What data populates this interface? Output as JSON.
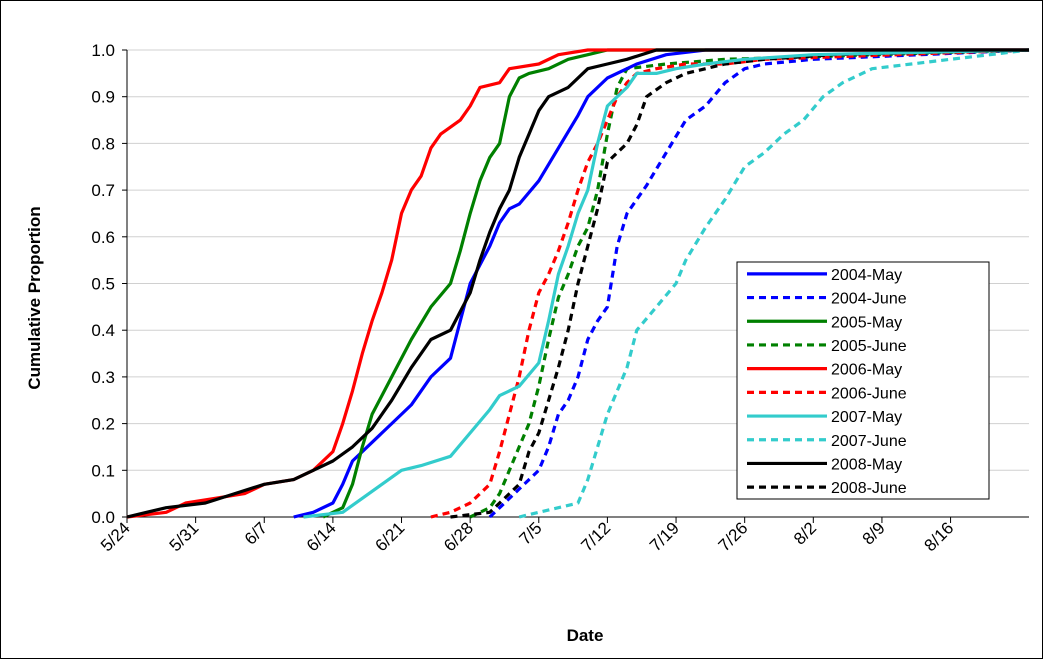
{
  "chart_data": {
    "type": "line",
    "xlabel": "Date",
    "ylabel": "Cumulative Proportion",
    "x_tick_labels": [
      "5/24",
      "5/31",
      "6/7",
      "6/14",
      "6/21",
      "6/28",
      "7/5",
      "7/12",
      "7/19",
      "7/26",
      "8/2",
      "8/9",
      "8/16"
    ],
    "x_range": [
      "5/24",
      "8/24"
    ],
    "ylim": [
      0,
      1
    ],
    "y_tick_labels": [
      "0.0",
      "0.1",
      "0.2",
      "0.3",
      "0.4",
      "0.5",
      "0.6",
      "0.7",
      "0.8",
      "0.9",
      "1.0"
    ],
    "grid": "horizontal",
    "legend_position": "right",
    "series": [
      {
        "name": "2004-May",
        "color": "#0000ff",
        "style": "solid",
        "points": [
          [
            "6/10",
            0
          ],
          [
            "6/12",
            0.01
          ],
          [
            "6/14",
            0.03
          ],
          [
            "6/15",
            0.07
          ],
          [
            "6/16",
            0.12
          ],
          [
            "6/18",
            0.16
          ],
          [
            "6/20",
            0.2
          ],
          [
            "6/22",
            0.24
          ],
          [
            "6/24",
            0.3
          ],
          [
            "6/26",
            0.34
          ],
          [
            "6/27",
            0.42
          ],
          [
            "6/28",
            0.5
          ],
          [
            "6/30",
            0.58
          ],
          [
            "7/1",
            0.63
          ],
          [
            "7/2",
            0.66
          ],
          [
            "7/3",
            0.67
          ],
          [
            "7/5",
            0.72
          ],
          [
            "7/7",
            0.79
          ],
          [
            "7/9",
            0.86
          ],
          [
            "7/10",
            0.9
          ],
          [
            "7/12",
            0.94
          ],
          [
            "7/15",
            0.97
          ],
          [
            "7/18",
            0.99
          ],
          [
            "7/22",
            1.0
          ],
          [
            "8/24",
            1.0
          ]
        ]
      },
      {
        "name": "2004-June",
        "color": "#0000ff",
        "style": "dashed",
        "points": [
          [
            "6/30",
            0
          ],
          [
            "7/1",
            0.02
          ],
          [
            "7/3",
            0.06
          ],
          [
            "7/5",
            0.1
          ],
          [
            "7/6",
            0.15
          ],
          [
            "7/7",
            0.22
          ],
          [
            "7/8",
            0.25
          ],
          [
            "7/9",
            0.3
          ],
          [
            "7/10",
            0.38
          ],
          [
            "7/11",
            0.42
          ],
          [
            "7/12",
            0.45
          ],
          [
            "7/13",
            0.58
          ],
          [
            "7/14",
            0.65
          ],
          [
            "7/16",
            0.71
          ],
          [
            "7/18",
            0.78
          ],
          [
            "7/20",
            0.85
          ],
          [
            "7/22",
            0.88
          ],
          [
            "7/24",
            0.93
          ],
          [
            "7/26",
            0.96
          ],
          [
            "7/28",
            0.97
          ],
          [
            "8/2",
            0.98
          ],
          [
            "8/24",
            1.0
          ]
        ]
      },
      {
        "name": "2005-May",
        "color": "#008000",
        "style": "solid",
        "points": [
          [
            "6/13",
            0
          ],
          [
            "6/15",
            0.02
          ],
          [
            "6/16",
            0.07
          ],
          [
            "6/17",
            0.15
          ],
          [
            "6/18",
            0.22
          ],
          [
            "6/20",
            0.3
          ],
          [
            "6/22",
            0.38
          ],
          [
            "6/24",
            0.45
          ],
          [
            "6/26",
            0.5
          ],
          [
            "6/27",
            0.57
          ],
          [
            "6/28",
            0.65
          ],
          [
            "6/29",
            0.72
          ],
          [
            "6/30",
            0.77
          ],
          [
            "7/1",
            0.8
          ],
          [
            "7/2",
            0.9
          ],
          [
            "7/3",
            0.94
          ],
          [
            "7/4",
            0.95
          ],
          [
            "7/6",
            0.96
          ],
          [
            "7/8",
            0.98
          ],
          [
            "7/10",
            0.99
          ],
          [
            "7/12",
            1.0
          ],
          [
            "8/24",
            1.0
          ]
        ]
      },
      {
        "name": "2005-June",
        "color": "#008000",
        "style": "dashed",
        "points": [
          [
            "6/28",
            0
          ],
          [
            "6/30",
            0.02
          ],
          [
            "7/1",
            0.05
          ],
          [
            "7/2",
            0.1
          ],
          [
            "7/3",
            0.15
          ],
          [
            "7/4",
            0.2
          ],
          [
            "7/5",
            0.28
          ],
          [
            "7/6",
            0.38
          ],
          [
            "7/7",
            0.47
          ],
          [
            "7/8",
            0.52
          ],
          [
            "7/9",
            0.58
          ],
          [
            "7/10",
            0.62
          ],
          [
            "7/11",
            0.7
          ],
          [
            "7/12",
            0.82
          ],
          [
            "7/13",
            0.92
          ],
          [
            "7/14",
            0.96
          ],
          [
            "7/18",
            0.97
          ],
          [
            "7/24",
            0.98
          ],
          [
            "8/24",
            1.0
          ]
        ]
      },
      {
        "name": "2006-May",
        "color": "#ff0000",
        "style": "solid",
        "points": [
          [
            "5/24",
            0
          ],
          [
            "5/28",
            0.01
          ],
          [
            "5/30",
            0.03
          ],
          [
            "6/2",
            0.04
          ],
          [
            "6/5",
            0.05
          ],
          [
            "6/7",
            0.07
          ],
          [
            "6/10",
            0.08
          ],
          [
            "6/12",
            0.1
          ],
          [
            "6/14",
            0.14
          ],
          [
            "6/15",
            0.2
          ],
          [
            "6/16",
            0.27
          ],
          [
            "6/17",
            0.35
          ],
          [
            "6/18",
            0.42
          ],
          [
            "6/19",
            0.48
          ],
          [
            "6/20",
            0.55
          ],
          [
            "6/21",
            0.65
          ],
          [
            "6/22",
            0.7
          ],
          [
            "6/23",
            0.73
          ],
          [
            "6/24",
            0.79
          ],
          [
            "6/25",
            0.82
          ],
          [
            "6/27",
            0.85
          ],
          [
            "6/28",
            0.88
          ],
          [
            "6/29",
            0.92
          ],
          [
            "7/1",
            0.93
          ],
          [
            "7/2",
            0.96
          ],
          [
            "7/5",
            0.97
          ],
          [
            "7/7",
            0.99
          ],
          [
            "7/10",
            1.0
          ],
          [
            "8/24",
            1.0
          ]
        ]
      },
      {
        "name": "2006-June",
        "color": "#ff0000",
        "style": "dashed",
        "points": [
          [
            "6/24",
            0
          ],
          [
            "6/26",
            0.01
          ],
          [
            "6/28",
            0.03
          ],
          [
            "6/30",
            0.07
          ],
          [
            "7/1",
            0.14
          ],
          [
            "7/2",
            0.22
          ],
          [
            "7/3",
            0.3
          ],
          [
            "7/4",
            0.4
          ],
          [
            "7/5",
            0.48
          ],
          [
            "7/6",
            0.52
          ],
          [
            "7/7",
            0.57
          ],
          [
            "7/8",
            0.63
          ],
          [
            "7/9",
            0.7
          ],
          [
            "7/10",
            0.76
          ],
          [
            "7/11",
            0.8
          ],
          [
            "7/12",
            0.85
          ],
          [
            "7/13",
            0.9
          ],
          [
            "7/14",
            0.93
          ],
          [
            "7/15",
            0.95
          ],
          [
            "7/17",
            0.96
          ],
          [
            "7/20",
            0.97
          ],
          [
            "7/24",
            0.97
          ],
          [
            "7/28",
            0.98
          ],
          [
            "8/24",
            1.0
          ]
        ]
      },
      {
        "name": "2007-May",
        "color": "#33cccc",
        "style": "solid",
        "points": [
          [
            "6/11",
            0
          ],
          [
            "6/15",
            0.01
          ],
          [
            "6/17",
            0.04
          ],
          [
            "6/19",
            0.07
          ],
          [
            "6/21",
            0.1
          ],
          [
            "6/23",
            0.11
          ],
          [
            "6/26",
            0.13
          ],
          [
            "6/28",
            0.18
          ],
          [
            "6/30",
            0.23
          ],
          [
            "7/1",
            0.26
          ],
          [
            "7/3",
            0.28
          ],
          [
            "7/5",
            0.33
          ],
          [
            "7/6",
            0.42
          ],
          [
            "7/7",
            0.52
          ],
          [
            "7/8",
            0.58
          ],
          [
            "7/9",
            0.65
          ],
          [
            "7/10",
            0.7
          ],
          [
            "7/11",
            0.8
          ],
          [
            "7/12",
            0.88
          ],
          [
            "7/13",
            0.9
          ],
          [
            "7/14",
            0.92
          ],
          [
            "7/15",
            0.95
          ],
          [
            "7/17",
            0.95
          ],
          [
            "7/19",
            0.96
          ],
          [
            "7/22",
            0.97
          ],
          [
            "7/26",
            0.98
          ],
          [
            "8/2",
            0.99
          ],
          [
            "8/24",
            1.0
          ]
        ]
      },
      {
        "name": "2007-June",
        "color": "#33cccc",
        "style": "dashed",
        "points": [
          [
            "7/3",
            0
          ],
          [
            "7/5",
            0.01
          ],
          [
            "7/7",
            0.02
          ],
          [
            "7/9",
            0.03
          ],
          [
            "7/10",
            0.08
          ],
          [
            "7/11",
            0.15
          ],
          [
            "7/12",
            0.22
          ],
          [
            "7/13",
            0.27
          ],
          [
            "7/14",
            0.32
          ],
          [
            "7/15",
            0.4
          ],
          [
            "7/17",
            0.45
          ],
          [
            "7/19",
            0.5
          ],
          [
            "7/20",
            0.55
          ],
          [
            "7/22",
            0.62
          ],
          [
            "7/24",
            0.68
          ],
          [
            "7/26",
            0.75
          ],
          [
            "7/28",
            0.78
          ],
          [
            "7/30",
            0.82
          ],
          [
            "8/1",
            0.85
          ],
          [
            "8/3",
            0.9
          ],
          [
            "8/5",
            0.93
          ],
          [
            "8/8",
            0.96
          ],
          [
            "8/12",
            0.97
          ],
          [
            "8/16",
            0.98
          ],
          [
            "8/20",
            0.99
          ],
          [
            "8/24",
            1.0
          ]
        ]
      },
      {
        "name": "2008-May",
        "color": "#000000",
        "style": "solid",
        "points": [
          [
            "5/24",
            0
          ],
          [
            "5/26",
            0.01
          ],
          [
            "5/28",
            0.02
          ],
          [
            "6/1",
            0.03
          ],
          [
            "6/4",
            0.05
          ],
          [
            "6/7",
            0.07
          ],
          [
            "6/10",
            0.08
          ],
          [
            "6/12",
            0.1
          ],
          [
            "6/14",
            0.12
          ],
          [
            "6/16",
            0.15
          ],
          [
            "6/18",
            0.19
          ],
          [
            "6/20",
            0.25
          ],
          [
            "6/22",
            0.32
          ],
          [
            "6/24",
            0.38
          ],
          [
            "6/26",
            0.4
          ],
          [
            "6/27",
            0.44
          ],
          [
            "6/28",
            0.48
          ],
          [
            "6/29",
            0.55
          ],
          [
            "6/30",
            0.61
          ],
          [
            "7/1",
            0.66
          ],
          [
            "7/2",
            0.7
          ],
          [
            "7/3",
            0.77
          ],
          [
            "7/4",
            0.82
          ],
          [
            "7/5",
            0.87
          ],
          [
            "7/6",
            0.9
          ],
          [
            "7/8",
            0.92
          ],
          [
            "7/10",
            0.96
          ],
          [
            "7/12",
            0.97
          ],
          [
            "7/14",
            0.98
          ],
          [
            "7/17",
            1.0
          ],
          [
            "8/24",
            1.0
          ]
        ]
      },
      {
        "name": "2008-June",
        "color": "#000000",
        "style": "dashed",
        "points": [
          [
            "6/26",
            0
          ],
          [
            "6/30",
            0.01
          ],
          [
            "7/1",
            0.03
          ],
          [
            "7/3",
            0.07
          ],
          [
            "7/4",
            0.14
          ],
          [
            "7/5",
            0.18
          ],
          [
            "7/6",
            0.25
          ],
          [
            "7/7",
            0.32
          ],
          [
            "7/8",
            0.4
          ],
          [
            "7/9",
            0.5
          ],
          [
            "7/10",
            0.58
          ],
          [
            "7/11",
            0.66
          ],
          [
            "7/12",
            0.76
          ],
          [
            "7/14",
            0.8
          ],
          [
            "7/15",
            0.84
          ],
          [
            "7/16",
            0.9
          ],
          [
            "7/18",
            0.93
          ],
          [
            "7/20",
            0.95
          ],
          [
            "7/24",
            0.97
          ],
          [
            "7/28",
            0.98
          ],
          [
            "8/4",
            0.99
          ],
          [
            "8/24",
            1.0
          ]
        ]
      }
    ]
  }
}
